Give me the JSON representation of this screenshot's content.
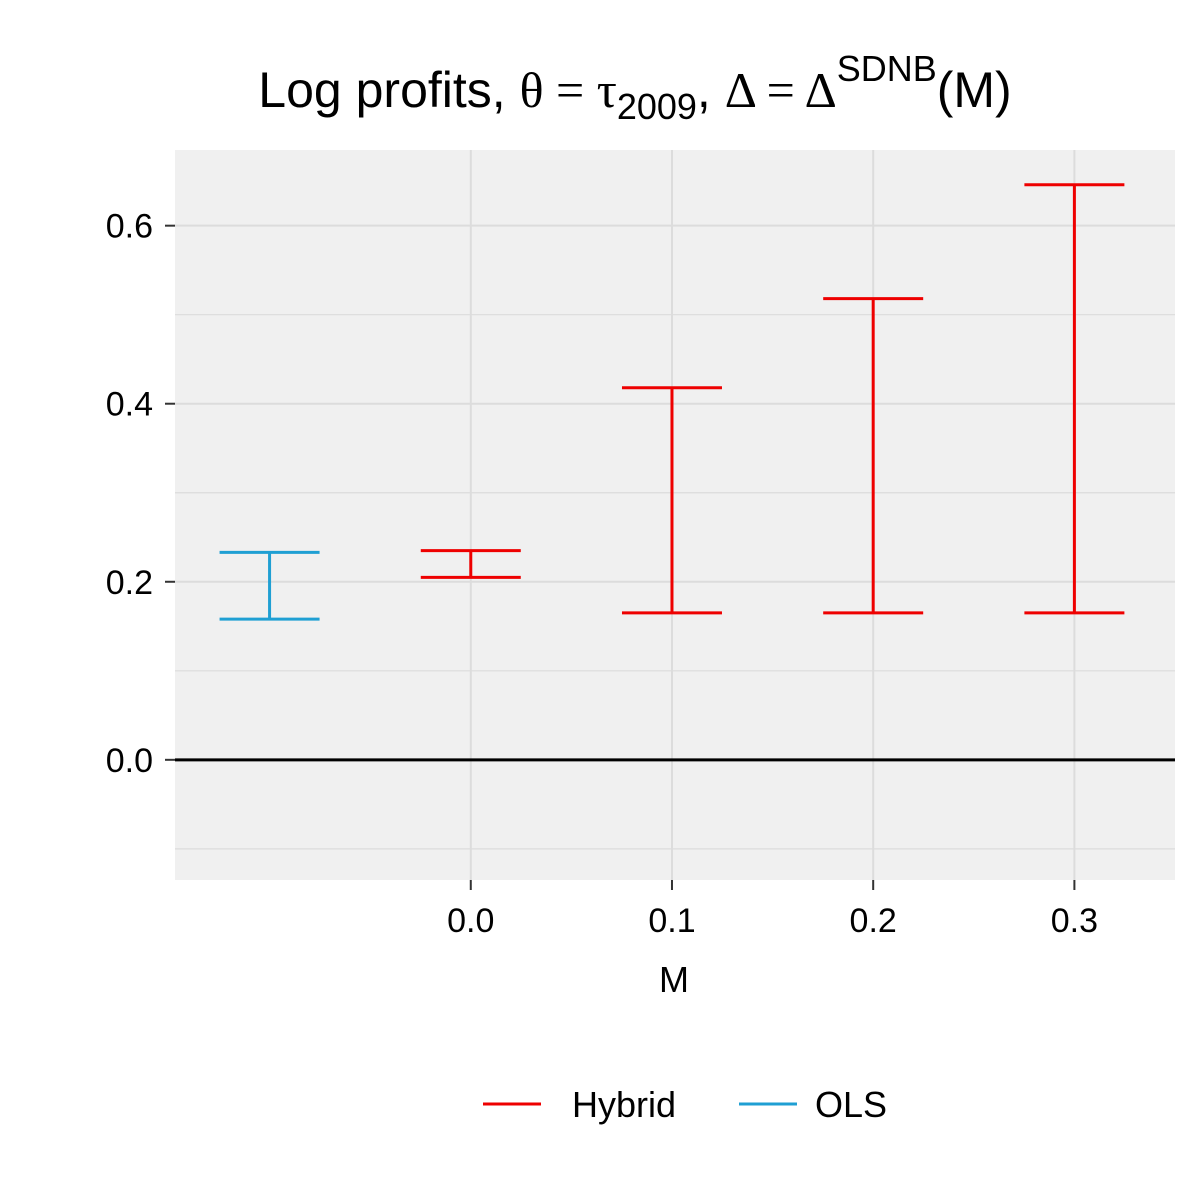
{
  "title": {
    "lead": "Log profits, ",
    "theta_symbol": "θ",
    "eq1": " = ",
    "tau_symbol": "τ",
    "tau_sub": "2009",
    "sep": ", ",
    "delta_symbol": "Δ",
    "eq2": " = ",
    "delta_symbol_2": "Δ",
    "delta_sup": "SDNB",
    "tail": "(M)"
  },
  "chart_data": {
    "type": "errorbar",
    "xlabel": "M",
    "ylabel": "",
    "x_ticks": [
      "0.0",
      "0.1",
      "0.2",
      "0.3"
    ],
    "y_ticks": [
      "0.0",
      "0.2",
      "0.4",
      "0.6"
    ],
    "xlim": [
      -0.147,
      0.35
    ],
    "ylim": [
      -0.135,
      0.685
    ],
    "grid": true,
    "reference_line_y": 0,
    "legend_position": "bottom",
    "series": [
      {
        "name": "Hybrid",
        "color": "#ee0000",
        "points": [
          {
            "x": 0.0,
            "lower": 0.205,
            "upper": 0.235
          },
          {
            "x": 0.1,
            "lower": 0.165,
            "upper": 0.418
          },
          {
            "x": 0.2,
            "lower": 0.165,
            "upper": 0.518
          },
          {
            "x": 0.3,
            "lower": 0.165,
            "upper": 0.646
          }
        ]
      },
      {
        "name": "OLS",
        "color": "#1f9fd3",
        "points": [
          {
            "x": -0.1,
            "lower": 0.158,
            "upper": 0.233
          }
        ]
      }
    ]
  }
}
